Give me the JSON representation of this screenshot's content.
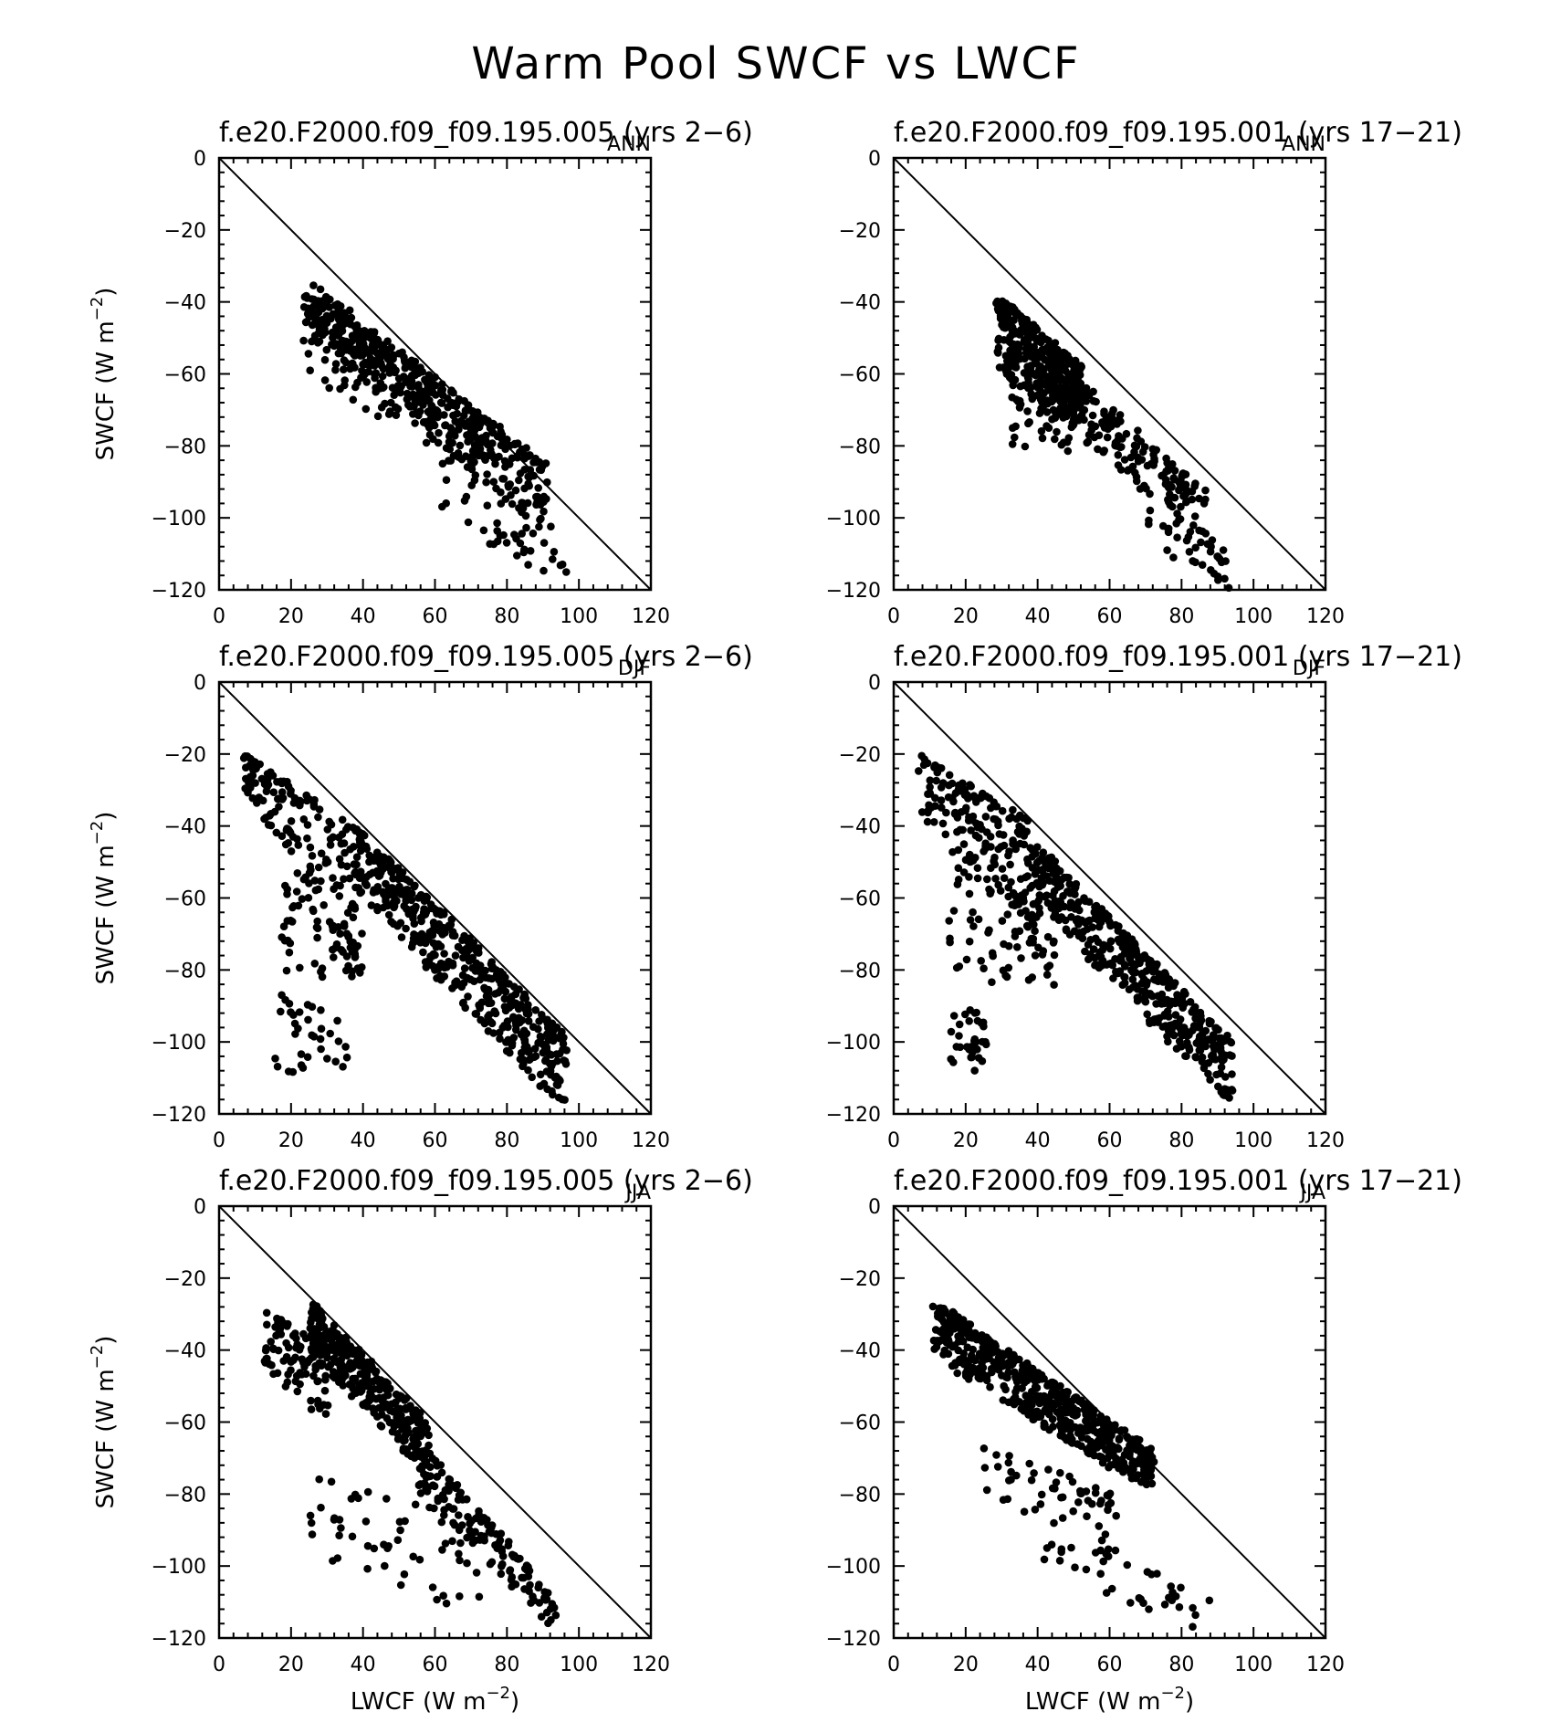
{
  "chart_data": {
    "type": "scatter",
    "title": "Warm Pool SWCF vs LWCF",
    "xlabel_main": "LWCF (W m",
    "ylabel_main": "SWCF (W m",
    "unit_exponent": "−2",
    "unit_close": ")",
    "xlim": [
      0,
      120
    ],
    "ylim": [
      -120,
      0
    ],
    "x_major_ticks": [
      0,
      20,
      40,
      60,
      80,
      100,
      120
    ],
    "y_major_ticks": [
      0,
      -20,
      -40,
      -60,
      -80,
      -100,
      -120
    ],
    "x_tick_labels": [
      "0",
      "20",
      "40",
      "60",
      "80",
      "100",
      "120"
    ],
    "y_tick_labels": [
      "0",
      "−20",
      "−40",
      "−60",
      "−80",
      "−100",
      "−120"
    ],
    "reference_line": {
      "from": [
        0,
        0
      ],
      "to": [
        120,
        -120
      ]
    },
    "marker_color": "#000000",
    "panels": [
      {
        "id": "r0c0",
        "row": 0,
        "col": 0,
        "title": "f.e20.F2000.f09_f09.195.005 (yrs 2−6)",
        "season": "ANN",
        "show_xlabel": false,
        "show_ylabel": true,
        "clusters": [
          {
            "n": 420,
            "x0": 25,
            "x1": 92,
            "y_top": [
              -34,
              -86
            ],
            "y_bot": [
              -50,
              -105
            ]
          },
          {
            "n": 120,
            "x0": 24,
            "x1": 60,
            "y_top": [
              -38,
              -60
            ],
            "y_bot": [
              -60,
              -82
            ]
          },
          {
            "n": 40,
            "x0": 60,
            "x1": 97,
            "y_top": [
              -80,
              -112
            ],
            "y_bot": [
              -98,
              -120
            ]
          }
        ]
      },
      {
        "id": "r0c1",
        "row": 0,
        "col": 1,
        "title": "f.e20.F2000.f09_f09.195.001 (yrs 17−21)",
        "season": "ANN",
        "show_xlabel": false,
        "show_ylabel": false,
        "clusters": [
          {
            "n": 340,
            "x0": 29,
            "x1": 52,
            "y_top": [
              -38,
              -58
            ],
            "y_bot": [
              -60,
              -75
            ]
          },
          {
            "n": 180,
            "x0": 45,
            "x1": 88,
            "y_top": [
              -56,
              -94
            ],
            "y_bot": [
              -72,
              -108
            ]
          },
          {
            "n": 40,
            "x0": 32,
            "x1": 50,
            "y_top": [
              -65,
              -70
            ],
            "y_bot": [
              -80,
              -82
            ]
          },
          {
            "n": 35,
            "x0": 68,
            "x1": 94,
            "y_top": [
              -95,
              -110
            ],
            "y_bot": [
              -105,
              -120
            ]
          }
        ]
      },
      {
        "id": "r1c0",
        "row": 1,
        "col": 0,
        "title": "f.e20.F2000.f09_f09.195.005 (yrs 2−6)",
        "season": "DJF",
        "show_xlabel": false,
        "show_ylabel": true,
        "clusters": [
          {
            "n": 160,
            "x0": 7,
            "x1": 40,
            "y_top": [
              -20,
              -42
            ],
            "y_bot": [
              -30,
              -82
            ]
          },
          {
            "n": 460,
            "x0": 38,
            "x1": 96,
            "y_top": [
              -40,
              -98
            ],
            "y_bot": [
              -58,
              -120
            ]
          },
          {
            "n": 60,
            "x0": 17,
            "x1": 40,
            "y_top": [
              -55,
              -70
            ],
            "y_bot": [
              -80,
              -85
            ]
          },
          {
            "n": 35,
            "x0": 15,
            "x1": 36,
            "y_top": [
              -85,
              -95
            ],
            "y_bot": [
              -110,
              -107
            ]
          }
        ]
      },
      {
        "id": "r1c1",
        "row": 1,
        "col": 1,
        "title": "f.e20.F2000.f09_f09.195.001 (yrs 17−21)",
        "season": "DJF",
        "show_xlabel": false,
        "show_ylabel": false,
        "clusters": [
          {
            "n": 170,
            "x0": 7,
            "x1": 40,
            "y_top": [
              -20,
              -40
            ],
            "y_bot": [
              -36,
              -75
            ]
          },
          {
            "n": 420,
            "x0": 40,
            "x1": 94,
            "y_top": [
              -45,
              -100
            ],
            "y_bot": [
              -62,
              -118
            ]
          },
          {
            "n": 80,
            "x0": 15,
            "x1": 45,
            "y_top": [
              -45,
              -65
            ],
            "y_bot": [
              -85,
              -85
            ]
          },
          {
            "n": 35,
            "x0": 15,
            "x1": 26,
            "y_top": [
              -85,
              -95
            ],
            "y_bot": [
              -110,
              -108
            ]
          }
        ]
      },
      {
        "id": "r2c0",
        "row": 2,
        "col": 0,
        "title": "f.e20.F2000.f09_f09.195.005 (yrs 2−6)",
        "season": "JJA",
        "show_xlabel": true,
        "show_ylabel": true,
        "clusters": [
          {
            "n": 340,
            "x0": 25,
            "x1": 58,
            "y_top": [
              -26,
              -60
            ],
            "y_bot": [
              -40,
              -75
            ]
          },
          {
            "n": 90,
            "x0": 13,
            "x1": 30,
            "y_top": [
              -29,
              -40
            ],
            "y_bot": [
              -45,
              -60
            ]
          },
          {
            "n": 140,
            "x0": 55,
            "x1": 93,
            "y_top": [
              -65,
              -108
            ],
            "y_bot": [
              -78,
              -118
            ]
          },
          {
            "n": 55,
            "x0": 25,
            "x1": 75,
            "y_top": [
              -75,
              -88
            ],
            "y_bot": [
              -100,
              -115
            ]
          }
        ]
      },
      {
        "id": "r2c1",
        "row": 2,
        "col": 1,
        "title": "f.e20.F2000.f09_f09.195.001 (yrs 17−21)",
        "season": "JJA",
        "show_xlabel": true,
        "show_ylabel": false,
        "clusters": [
          {
            "n": 540,
            "x0": 11,
            "x1": 72,
            "y_top": [
              -26,
              -68
            ],
            "y_bot": [
              -42,
              -80
            ]
          },
          {
            "n": 55,
            "x0": 25,
            "x1": 62,
            "y_top": [
              -66,
              -80
            ],
            "y_bot": [
              -80,
              -96
            ]
          },
          {
            "n": 40,
            "x0": 40,
            "x1": 88,
            "y_top": [
              -85,
              -108
            ],
            "y_bot": [
              -100,
              -120
            ]
          }
        ]
      }
    ]
  }
}
